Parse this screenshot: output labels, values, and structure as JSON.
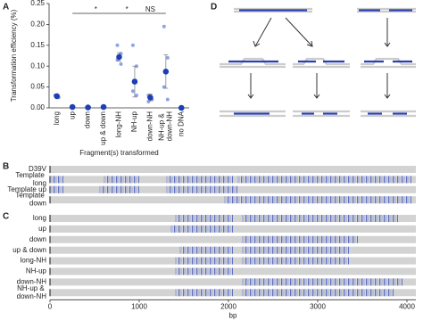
{
  "panel_labels": [
    "A",
    "B",
    "C",
    "D"
  ],
  "chart_data": [
    {
      "type": "dotplot",
      "ylabel": "Transformation efficiency (%)",
      "xlabel": "Fragment(s) transformed",
      "categories": [
        "long",
        "up",
        "down",
        "up & down",
        "long-NH",
        "NH-up",
        "down-NH",
        "NH-up & down-NH",
        "no DNA"
      ],
      "values": [
        0.028,
        0.002,
        0.001,
        0.002,
        0.122,
        0.063,
        0.025,
        0.087,
        0.0
      ],
      "errors": [
        0.004,
        0,
        0,
        0,
        0.01,
        0.037,
        0.008,
        0.04,
        0
      ],
      "points": [
        [
          0.03,
          0.025
        ],
        [
          0.003
        ],
        [
          0.001
        ],
        [
          0.002
        ],
        [
          0.15,
          0.13,
          0.115,
          0.105
        ],
        [
          0.15,
          0.1,
          0.04,
          0.03
        ],
        [
          0.03,
          0.02,
          0.015
        ],
        [
          0.195,
          0.12,
          0.05,
          0.02
        ],
        [
          0
        ]
      ],
      "color": "#1d3fb3",
      "point_color": "#8fa3e6",
      "annotations": [
        "*",
        "*",
        "NS"
      ],
      "ylim": [
        0,
        0.25
      ],
      "yticks": [
        {
          "value": 0,
          "label": "0.00"
        },
        {
          "value": 0.05,
          "label": "0.05"
        },
        {
          "value": 0.1,
          "label": "0.10"
        },
        {
          "value": 0.15,
          "label": "0.15"
        },
        {
          "value": 0.2,
          "label": "0.20"
        },
        {
          "value": 0.25,
          "label": "0.25"
        }
      ]
    },
    {
      "type": "tracks",
      "color": "#4a5fc4",
      "xlim": [
        0,
        4100
      ],
      "tracks": [
        {
          "name": "D39V",
          "regions": []
        },
        {
          "name": "Template long",
          "regions": [
            [
              0,
              150
            ],
            [
              600,
              1000
            ],
            [
              1300,
              2050
            ],
            [
              2100,
              4050
            ]
          ]
        },
        {
          "name": "Template up",
          "regions": [
            [
              0,
              150
            ],
            [
              550,
              1000
            ],
            [
              1300,
              2100
            ]
          ]
        },
        {
          "name": "Template down",
          "regions": [
            [
              1950,
              4050
            ]
          ]
        }
      ]
    },
    {
      "type": "tracks",
      "color": "#4a5fc4",
      "xlim": [
        0,
        4100
      ],
      "xticks": [
        0,
        1000,
        2000,
        3000,
        4000
      ],
      "xlabel": "bp",
      "tracks": [
        {
          "name": "long",
          "regions": [
            [
              1400,
              2050
            ],
            [
              2150,
              3900
            ]
          ]
        },
        {
          "name": "up",
          "regions": [
            [
              1350,
              2050
            ]
          ]
        },
        {
          "name": "down",
          "regions": [
            [
              2150,
              3450
            ]
          ]
        },
        {
          "name": "up & down",
          "regions": [
            [
              1450,
              2050
            ],
            [
              2150,
              3350
            ]
          ]
        },
        {
          "name": "long-NH",
          "regions": [
            [
              1400,
              2050
            ],
            [
              2150,
              3350
            ]
          ]
        },
        {
          "name": "NH-up",
          "regions": [
            [
              1400,
              2050
            ]
          ]
        },
        {
          "name": "down-NH",
          "regions": [
            [
              2150,
              3950
            ]
          ]
        },
        {
          "name": "NH-up & down-NH",
          "regions": [
            [
              1400,
              2050
            ],
            [
              2150,
              3850
            ]
          ]
        }
      ]
    }
  ]
}
